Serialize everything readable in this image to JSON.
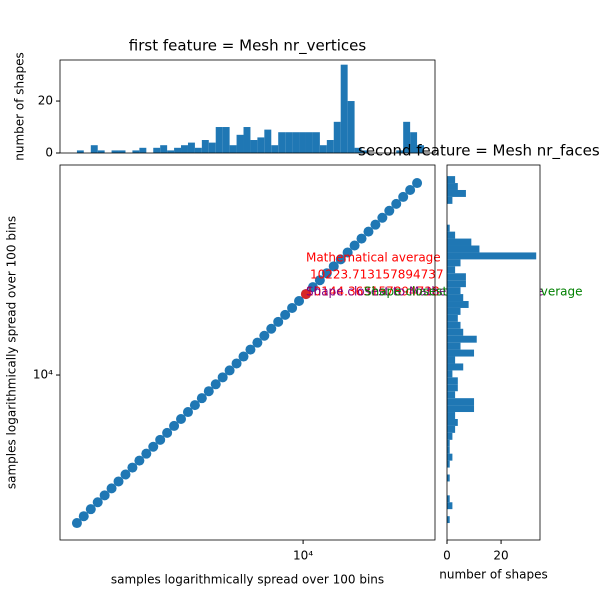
{
  "chart_data": [
    {
      "type": "histogram",
      "orientation": "vertical",
      "title": "first feature = Mesh nr_vertices",
      "y_label": "number of shapes",
      "color": "#1f77b4",
      "bins": [
        1765,
        1860,
        1963,
        2070,
        2183,
        2302,
        2428,
        2561,
        2701,
        2849,
        3005,
        3169,
        3342,
        3525,
        3718,
        3921,
        4136,
        4362,
        4600,
        4852,
        5117,
        5397,
        5692,
        6004,
        6332,
        6678,
        7043,
        7428,
        7835,
        8263,
        8715,
        9192,
        9694,
        10224,
        10783,
        11373,
        11995,
        12651,
        13343,
        14073,
        14842,
        15654,
        16510,
        17413,
        18365,
        19370,
        20429,
        21546,
        22725,
        23968,
        25280
      ],
      "counts": [
        1,
        0,
        3,
        1,
        0,
        1,
        1,
        0,
        1,
        2,
        0,
        2,
        3,
        1,
        2,
        3,
        4,
        2,
        5,
        4,
        10,
        10,
        3,
        7,
        10,
        5,
        6,
        9,
        3,
        8,
        8,
        8,
        8,
        8,
        8,
        3,
        5,
        12,
        34,
        20,
        2,
        1,
        0,
        0,
        0,
        0,
        1,
        12,
        8,
        3
      ],
      "xscale": "log",
      "xlim": [
        1550,
        27500
      ],
      "ylim": [
        0,
        35.8
      ],
      "yticks": [
        0,
        20
      ]
    },
    {
      "type": "scatter",
      "x_label": "samples logarithmically spread over 100 bins",
      "y_label": "samples logarithmically spread over 100 bins",
      "color": "#1f77b4",
      "x": [
        1765,
        1860,
        1963,
        2070,
        2183,
        2302,
        2428,
        2561,
        2701,
        2849,
        3005,
        3169,
        3342,
        3525,
        3718,
        3921,
        4136,
        4362,
        4600,
        4852,
        5117,
        5397,
        5692,
        6004,
        6332,
        6678,
        7043,
        7428,
        7835,
        8263,
        8715,
        9192,
        9694,
        10224,
        10783,
        11373,
        11995,
        12651,
        13343,
        14073,
        14842,
        15654,
        16510,
        17413,
        18365,
        19370,
        20429,
        21546,
        22725,
        23968
      ],
      "y": [
        3212,
        3385,
        3573,
        3767,
        3973,
        4190,
        4419,
        4661,
        4916,
        5185,
        5469,
        5768,
        6082,
        6416,
        6767,
        7136,
        7528,
        7939,
        8372,
        8831,
        9313,
        9823,
        10359,
        10927,
        11524,
        12154,
        12818,
        13519,
        14260,
        15039,
        15861,
        16729,
        17643,
        18608,
        19625,
        20699,
        21831,
        23025,
        24284,
        25613,
        27012,
        28490,
        30048,
        31692,
        33424,
        35253,
        37181,
        39214,
        41360,
        43622
      ],
      "highlight": {
        "x": 10224,
        "y": 18608,
        "color": "#d62728"
      },
      "annotations": [
        {
          "text": "Mathematical average",
          "color": "#ff0000"
        },
        {
          "text": "10223.713157894737",
          "color": "#ff0000"
        },
        {
          "text": "10144.363157894738",
          "color": "#ff0000"
        },
        {
          "text": "Shape closest to Mathematical average",
          "color": "#800080"
        },
        {
          "text": "Shape closest to Geometric average",
          "color": "#008000"
        }
      ],
      "xscale": "log",
      "yscale": "log",
      "xlim": [
        1550,
        27500
      ],
      "ylim": [
        2820,
        50100
      ],
      "xticks": [
        {
          "value": 10000,
          "label": "10⁴"
        }
      ],
      "yticks": [
        {
          "value": 10000,
          "label": "10⁴"
        }
      ]
    },
    {
      "type": "histogram",
      "orientation": "horizontal",
      "title": "second feature = Mesh nr_faces",
      "x_label": "number of shapes",
      "color": "#1f77b4",
      "bins": [
        3212,
        3385,
        3573,
        3767,
        3973,
        4190,
        4419,
        4661,
        4916,
        5185,
        5469,
        5768,
        6082,
        6416,
        6767,
        7136,
        7528,
        7939,
        8372,
        8831,
        9313,
        9823,
        10359,
        10927,
        11524,
        12154,
        12818,
        13519,
        14260,
        15039,
        15861,
        16729,
        17643,
        18608,
        19625,
        20699,
        21831,
        23025,
        24284,
        25613,
        27012,
        28490,
        30048,
        31692,
        33424,
        35253,
        37181,
        39214,
        41360,
        43622,
        46006
      ],
      "counts": [
        1,
        0,
        2,
        1,
        0,
        0,
        1,
        0,
        1,
        2,
        1,
        1,
        2,
        3,
        4,
        3,
        10,
        10,
        3,
        4,
        4,
        2,
        6,
        3,
        10,
        5,
        11,
        6,
        5,
        4,
        5,
        8,
        6,
        5,
        7,
        7,
        3,
        5,
        33,
        12,
        9,
        3,
        1,
        0,
        0,
        0,
        2,
        7,
        4,
        3
      ],
      "yscale": "log",
      "ylim": [
        2820,
        50100
      ],
      "xlim": [
        0,
        34.4
      ],
      "xticks": [
        0,
        20
      ]
    }
  ]
}
